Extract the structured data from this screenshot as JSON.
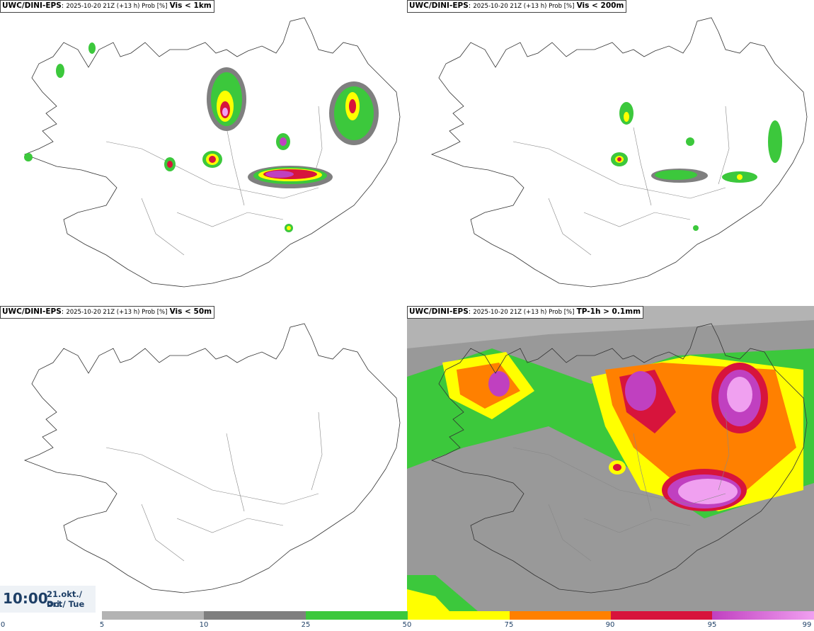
{
  "panels": [
    {
      "model": "UWC/DINI-EPS",
      "run": "2025-10-20 21Z (+13 h) Prob [%]",
      "field": "Vis < 1km"
    },
    {
      "model": "UWC/DINI-EPS",
      "run": "2025-10-20 21Z (+13 h) Prob [%]",
      "field": "Vis < 200m"
    },
    {
      "model": "UWC/DINI-EPS",
      "run": "2025-10-20 21Z (+13 h) Prob [%]",
      "field": "Vis < 50m"
    },
    {
      "model": "UWC/DINI-EPS",
      "run": "2025-10-20 21Z (+13 h) Prob [%]",
      "field": "TP-1h > 0.1mm"
    }
  ],
  "valid_time": {
    "time": "10:00",
    "date_line1": "21.okt./ Oct",
    "date_line2": "Þri./ Tue"
  },
  "colorbar": {
    "ticks": [
      "0",
      "5",
      "10",
      "25",
      "50",
      "75",
      "90",
      "95",
      "99"
    ],
    "colors": {
      "c5": "#b3b3b3",
      "c10": "#7f7f7f",
      "c25": "#3cc83c",
      "c50": "#ffff00",
      "c75": "#ff8000",
      "c90": "#d7143c",
      "c95_start": "#c040c0",
      "c95_end": "#f0a0f0"
    }
  }
}
